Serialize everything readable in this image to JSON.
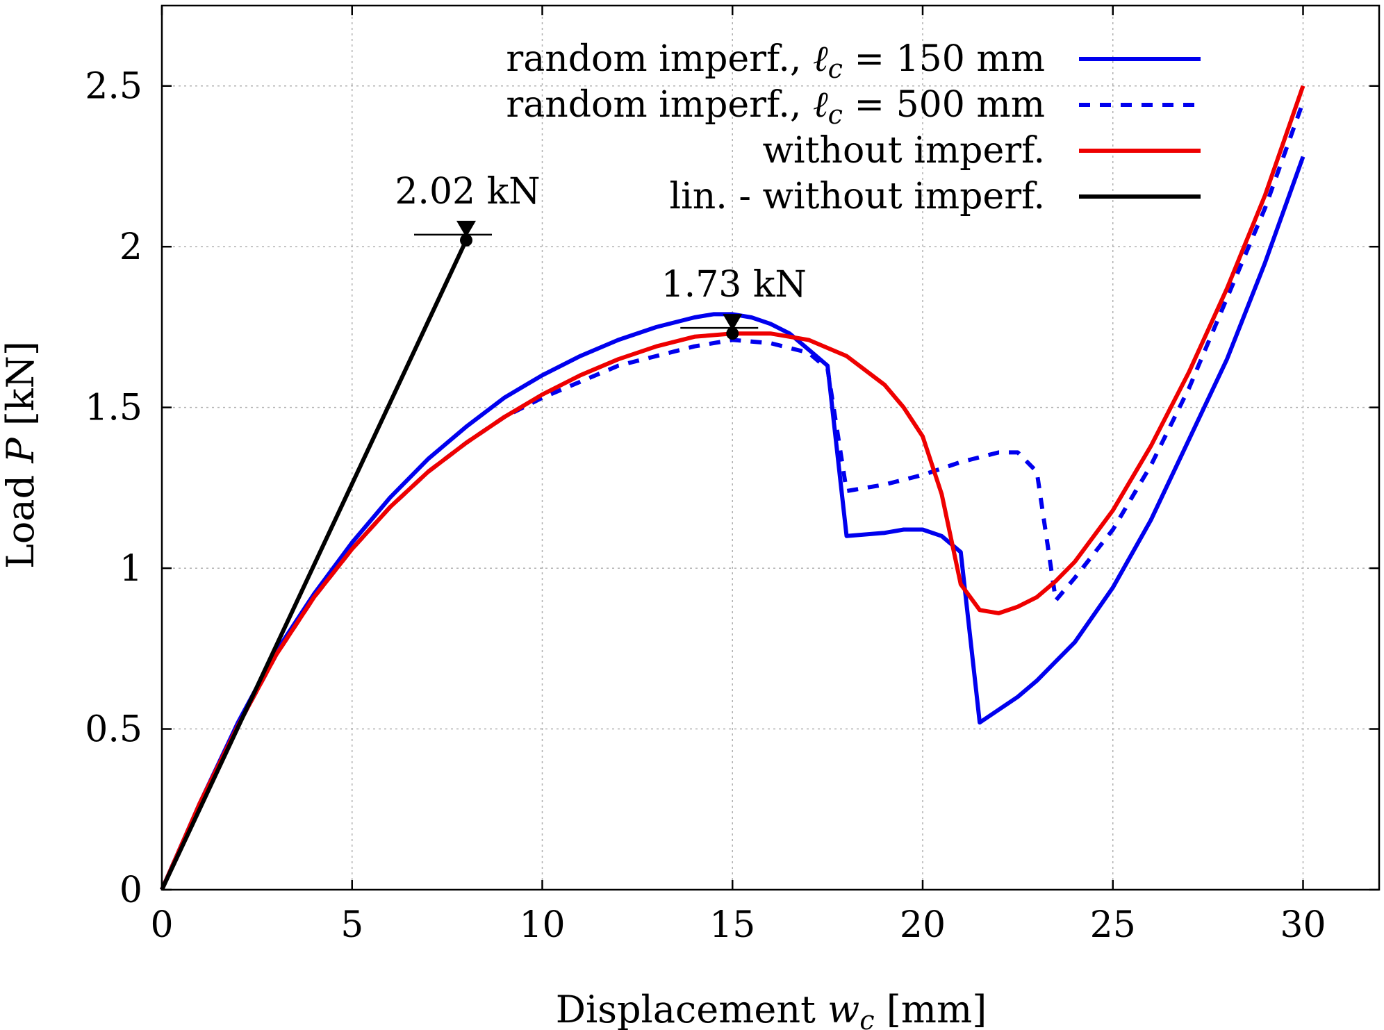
{
  "chart_data": {
    "type": "line",
    "xlabel": "Displacement w_c [mm]",
    "xlabel_parts": {
      "before": "Displacement ",
      "var": "w",
      "sub": "c",
      "after": " [mm]"
    },
    "ylabel": "Load P [kN]",
    "ylabel_parts": {
      "before": "Load ",
      "var": "P",
      "after": " [kN]"
    },
    "xlim": [
      0,
      32
    ],
    "ylim": [
      0,
      2.75
    ],
    "xticks": [
      0,
      5,
      10,
      15,
      20,
      25,
      30
    ],
    "xtick_labels": [
      "0",
      "5",
      "10",
      "15",
      "20",
      "25",
      "30"
    ],
    "yticks": [
      0,
      0.5,
      1,
      1.5,
      2,
      2.5
    ],
    "ytick_labels": [
      "0",
      "0.5",
      "1",
      "1.5",
      "2",
      "2.5"
    ],
    "grid": true,
    "legend_position": "top-right",
    "series": [
      {
        "name": "random imperf., ℓc = 150 mm",
        "legend_parts": {
          "before": "random imperf., ",
          "var": "ℓ",
          "sub": "c",
          "after": " = 150 mm"
        },
        "color": "#0000ee",
        "dash": "solid",
        "x": [
          0,
          1,
          2,
          3,
          4,
          5,
          6,
          7,
          8,
          9,
          10,
          11,
          12,
          13,
          14,
          14.5,
          15,
          15.5,
          16,
          16.5,
          17,
          17.5,
          18,
          19,
          19.5,
          20,
          20.5,
          21,
          21.5,
          22,
          22.5,
          23,
          23.5,
          24,
          25,
          26,
          27,
          28,
          29,
          30
        ],
        "y": [
          0,
          0.27,
          0.52,
          0.74,
          0.92,
          1.08,
          1.22,
          1.34,
          1.44,
          1.53,
          1.6,
          1.66,
          1.71,
          1.75,
          1.78,
          1.79,
          1.79,
          1.78,
          1.76,
          1.73,
          1.68,
          1.63,
          1.1,
          1.11,
          1.12,
          1.12,
          1.1,
          1.05,
          0.52,
          0.56,
          0.6,
          0.65,
          0.71,
          0.77,
          0.94,
          1.15,
          1.4,
          1.65,
          1.95,
          2.28
        ]
      },
      {
        "name": "random imperf., ℓc = 500 mm",
        "legend_parts": {
          "before": "random imperf., ",
          "var": "ℓ",
          "sub": "c",
          "after": " = 500 mm"
        },
        "color": "#0000ee",
        "dash": "dashed",
        "x": [
          0,
          1,
          2,
          3,
          4,
          5,
          6,
          7,
          8,
          9,
          10,
          11,
          12,
          13,
          14,
          15,
          16,
          17,
          17.5,
          18,
          19,
          20,
          21,
          22,
          22.5,
          23,
          23.5,
          24,
          25,
          26,
          27,
          28,
          29,
          30
        ],
        "y": [
          0,
          0.27,
          0.51,
          0.73,
          0.91,
          1.06,
          1.19,
          1.3,
          1.39,
          1.47,
          1.53,
          1.58,
          1.63,
          1.66,
          1.69,
          1.71,
          1.7,
          1.67,
          1.62,
          1.24,
          1.26,
          1.29,
          1.33,
          1.36,
          1.36,
          1.3,
          0.9,
          0.97,
          1.12,
          1.32,
          1.56,
          1.84,
          2.12,
          2.45
        ]
      },
      {
        "name": "without imperf.",
        "legend_parts": {
          "before": "without imperf.",
          "var": "",
          "sub": "",
          "after": ""
        },
        "color": "#ee0000",
        "dash": "solid",
        "x": [
          0,
          1,
          2,
          3,
          4,
          5,
          6,
          7,
          8,
          9,
          10,
          11,
          12,
          13,
          14,
          15,
          16,
          17,
          18,
          19,
          19.5,
          20,
          20.5,
          21,
          21.5,
          22,
          22.5,
          23,
          23.5,
          24,
          25,
          26,
          27,
          28,
          29,
          30
        ],
        "y": [
          0,
          0.27,
          0.51,
          0.73,
          0.91,
          1.06,
          1.19,
          1.3,
          1.39,
          1.47,
          1.54,
          1.6,
          1.65,
          1.69,
          1.72,
          1.73,
          1.73,
          1.71,
          1.66,
          1.57,
          1.5,
          1.41,
          1.23,
          0.95,
          0.87,
          0.86,
          0.88,
          0.91,
          0.96,
          1.02,
          1.18,
          1.38,
          1.61,
          1.87,
          2.16,
          2.5
        ]
      },
      {
        "name": "lin. - without imperf.",
        "legend_parts": {
          "before": "lin. - without imperf.",
          "var": "",
          "sub": "",
          "after": ""
        },
        "color": "#000000",
        "dash": "solid",
        "x": [
          0,
          8
        ],
        "y": [
          0,
          2.02
        ]
      }
    ],
    "annotations": [
      {
        "text": "2.02 kN",
        "x": 8,
        "y": 2.02
      },
      {
        "text": "1.73 kN",
        "x": 15,
        "y": 1.73
      }
    ]
  }
}
